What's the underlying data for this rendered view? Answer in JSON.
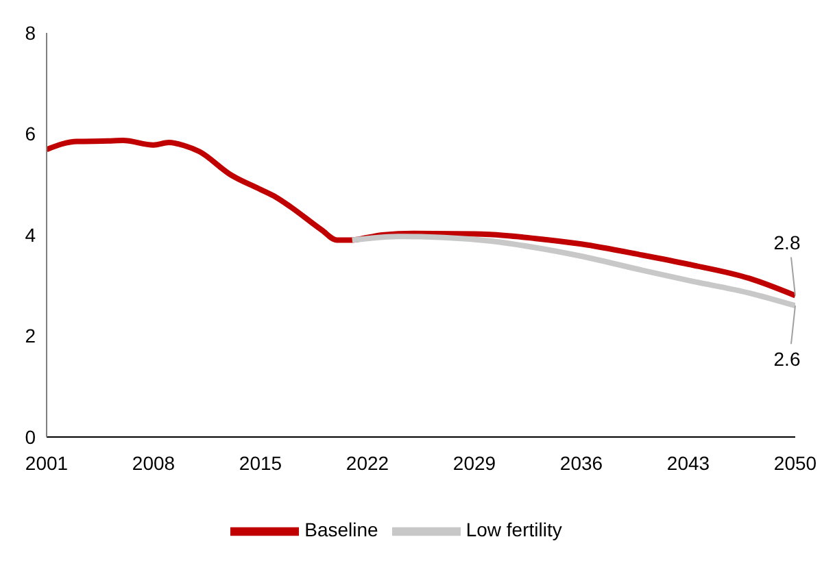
{
  "chart_data": {
    "type": "line",
    "xlim": [
      2001,
      2050
    ],
    "xticks": [
      2001,
      2008,
      2015,
      2022,
      2029,
      2036,
      2043,
      2050
    ],
    "ylim": [
      0,
      8
    ],
    "yticks": [
      0,
      2,
      4,
      6,
      8
    ],
    "grid": false,
    "legend": "bottom",
    "marker": "none",
    "line_style": "solid",
    "series": [
      {
        "name": "Baseline",
        "color": "#c00000",
        "x": [
          2001,
          2002,
          2003,
          2005,
          2006,
          2008,
          2009,
          2010,
          2011,
          2013,
          2015,
          2016,
          2017,
          2019,
          2020,
          2021,
          2022,
          2023,
          2025,
          2029,
          2030,
          2033,
          2036,
          2040,
          2043,
          2047,
          2050
        ],
        "values": [
          5.69,
          5.8,
          5.85,
          5.86,
          5.87,
          5.78,
          5.83,
          5.77,
          5.65,
          5.2,
          4.9,
          4.75,
          4.55,
          4.1,
          3.9,
          3.9,
          3.95,
          4.0,
          4.03,
          4.02,
          4.01,
          3.93,
          3.82,
          3.6,
          3.42,
          3.14,
          2.8
        ],
        "value_labels": [
          null,
          null,
          null,
          null,
          null,
          null,
          null,
          null,
          null,
          null,
          null,
          null,
          null,
          null,
          null,
          null,
          null,
          null,
          null,
          null,
          null,
          null,
          null,
          null,
          null,
          null,
          "2.8"
        ]
      },
      {
        "name": "Low fertility",
        "color": "#c8c8c8",
        "x": [
          2021,
          2022,
          2024,
          2027,
          2030,
          2033,
          2036,
          2040,
          2043,
          2047,
          2050
        ],
        "values": [
          3.9,
          3.93,
          3.97,
          3.95,
          3.88,
          3.75,
          3.58,
          3.3,
          3.1,
          2.85,
          2.6
        ],
        "value_labels": [
          null,
          null,
          null,
          null,
          null,
          null,
          null,
          null,
          null,
          null,
          "2.6"
        ]
      }
    ]
  }
}
